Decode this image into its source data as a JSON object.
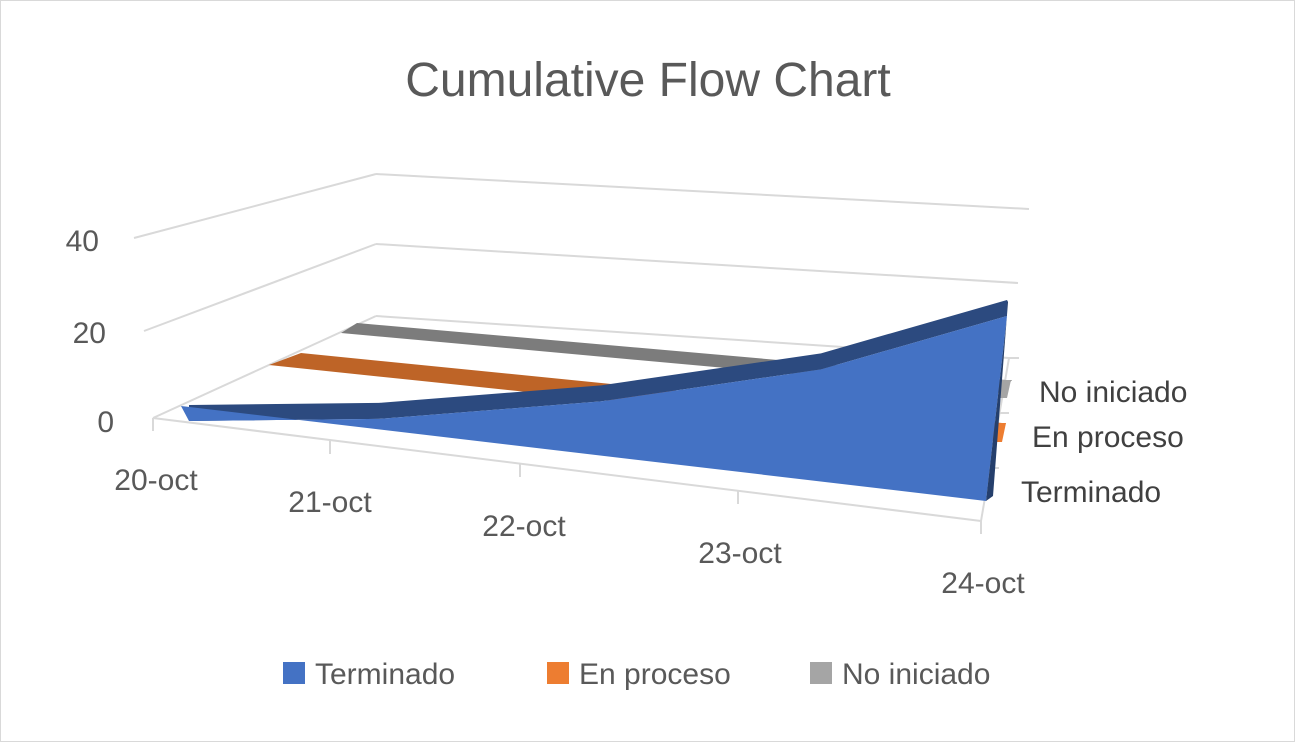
{
  "chart_data": {
    "type": "area",
    "title": "Cumulative Flow Chart",
    "xlabel": "",
    "ylabel": "",
    "categories": [
      "20-oct",
      "21-oct",
      "22-oct",
      "23-oct",
      "24-oct"
    ],
    "series": [
      {
        "name": "Terminado",
        "values": [
          0,
          3,
          10,
          17,
          26
        ],
        "color": "#4472c4"
      },
      {
        "name": "En proceso",
        "values": [
          0,
          0,
          0,
          0,
          0
        ],
        "color": "#ed7d31"
      },
      {
        "name": "No iniciado",
        "values": [
          0,
          0,
          0,
          0,
          0
        ],
        "color": "#a5a5a5"
      }
    ],
    "y_ticks": [
      "0",
      "20",
      "40"
    ],
    "ylim": [
      0,
      40
    ],
    "depth_labels": [
      "No iniciado",
      "En proceso",
      "Terminado"
    ],
    "grid": true,
    "legend_position": "bottom",
    "view": "3d"
  }
}
